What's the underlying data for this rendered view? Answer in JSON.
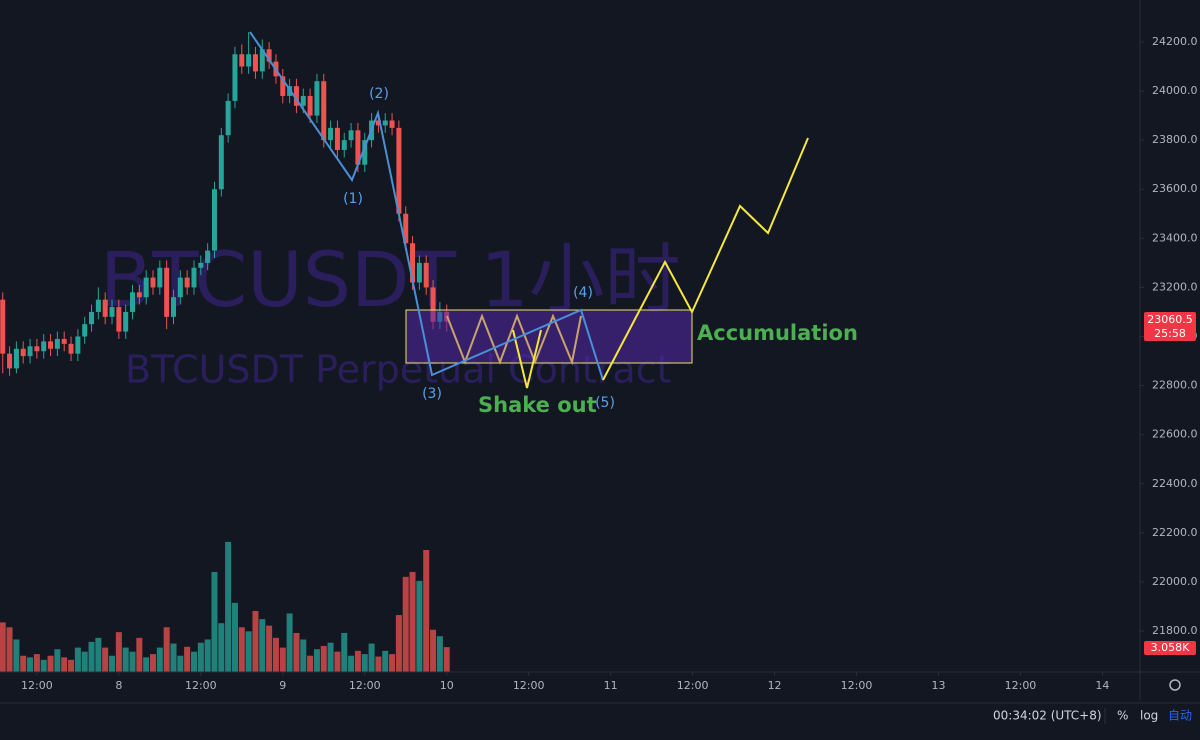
{
  "chart_data": {
    "type": "candlestick",
    "watermark": "BTCUSDT 1小时",
    "watermark_subtitle": "BTCUSDT Perpetual Contract",
    "x": [
      -17,
      -16,
      -15,
      -14,
      -13,
      -12,
      -11,
      -10,
      -9,
      -8,
      -7,
      -6,
      -5,
      -4,
      -3,
      -2,
      -1,
      0,
      1,
      2,
      3,
      4,
      5,
      6,
      7,
      8,
      9,
      10,
      11,
      12,
      13,
      14,
      15,
      16,
      17,
      18,
      19,
      20,
      21,
      22,
      23,
      24,
      25,
      26,
      27,
      28,
      29,
      30,
      31,
      32,
      33,
      34,
      35,
      36,
      37,
      38,
      39,
      40,
      41,
      42,
      43,
      44,
      45,
      46,
      47,
      48
    ],
    "open": [
      23150,
      22930,
      22870,
      22950,
      22920,
      22960,
      22940,
      22980,
      22950,
      22990,
      22970,
      22930,
      23000,
      23050,
      23100,
      23150,
      23080,
      23120,
      23020,
      23100,
      23180,
      23160,
      23240,
      23200,
      23280,
      23080,
      23160,
      23240,
      23200,
      23280,
      23300,
      23350,
      23600,
      23820,
      23960,
      24150,
      24100,
      24150,
      24080,
      24170,
      24120,
      24060,
      23980,
      24020,
      23940,
      23980,
      23900,
      24040,
      23800,
      23850,
      23760,
      23800,
      23840,
      23700,
      23800,
      23880,
      23860,
      23880,
      23850,
      23500,
      23380,
      23220,
      23300,
      23200,
      23060,
      23100
    ],
    "high": [
      23180,
      22960,
      22980,
      22980,
      22990,
      22990,
      23010,
      23010,
      23020,
      23020,
      23000,
      23030,
      23080,
      23130,
      23200,
      23180,
      23150,
      23150,
      23130,
      23210,
      23210,
      23270,
      23270,
      23310,
      23310,
      23190,
      23270,
      23270,
      23310,
      23330,
      23380,
      23630,
      23850,
      23990,
      24180,
      24190,
      24240,
      24180,
      24210,
      24200,
      24150,
      24090,
      24050,
      24050,
      24010,
      24010,
      24070,
      24070,
      23880,
      23880,
      23830,
      23870,
      23870,
      23830,
      23910,
      23910,
      23910,
      23910,
      23880,
      23530,
      23410,
      23330,
      23330,
      23230,
      23140,
      23130
    ],
    "low": [
      22850,
      22840,
      22850,
      22890,
      22890,
      22910,
      22910,
      22920,
      22920,
      22940,
      22900,
      22900,
      22970,
      23020,
      23070,
      23050,
      23050,
      22990,
      22990,
      23070,
      23130,
      23130,
      23170,
      23170,
      23030,
      23050,
      23130,
      23170,
      23170,
      23250,
      23270,
      23320,
      23570,
      23790,
      23930,
      24070,
      24070,
      24050,
      24050,
      24090,
      24030,
      23950,
      23950,
      23910,
      23910,
      23870,
      23870,
      23770,
      23770,
      23730,
      23730,
      23770,
      23670,
      23670,
      23770,
      23830,
      23830,
      23820,
      23470,
      23350,
      23190,
      23190,
      23170,
      23030,
      23030,
      23020
    ],
    "close": [
      22930,
      22870,
      22950,
      22920,
      22960,
      22940,
      22980,
      22950,
      22990,
      22970,
      22930,
      23000,
      23050,
      23100,
      23150,
      23080,
      23120,
      23020,
      23100,
      23180,
      23160,
      23240,
      23200,
      23280,
      23080,
      23160,
      23240,
      23200,
      23280,
      23300,
      23350,
      23600,
      23820,
      23960,
      24150,
      24100,
      24150,
      24080,
      24170,
      24120,
      24060,
      23980,
      24020,
      23940,
      23980,
      23900,
      24040,
      23800,
      23850,
      23760,
      23800,
      23840,
      23700,
      23800,
      23880,
      23860,
      23880,
      23850,
      23500,
      23380,
      23220,
      23300,
      23200,
      23060,
      23100,
      23060.5
    ],
    "volume": [
      6100,
      5500,
      4000,
      2000,
      1800,
      2200,
      1500,
      2000,
      2800,
      1800,
      1500,
      3000,
      2500,
      3700,
      4200,
      3000,
      2000,
      4900,
      3000,
      2500,
      4200,
      1800,
      2200,
      3000,
      5500,
      3500,
      2000,
      3100,
      2500,
      3600,
      4000,
      12300,
      6000,
      16000,
      8500,
      5500,
      5000,
      7500,
      6500,
      5700,
      4200,
      3000,
      7200,
      4800,
      4000,
      2000,
      2800,
      3200,
      3600,
      2500,
      4800,
      2000,
      2600,
      2200,
      3500,
      1900,
      2600,
      2200,
      7000,
      11700,
      12300,
      11200,
      15000,
      5200,
      4400,
      3058
    ],
    "up_color": "#26a69a",
    "down_color": "#ef5350",
    "xlim": [
      -17.4,
      149.5
    ],
    "ylim": [
      21633,
      24371
    ],
    "volume_ylim": [
      0,
      30000
    ],
    "xticks": [
      {
        "value": -12,
        "label": "12:00"
      },
      {
        "value": 0,
        "label": "8"
      },
      {
        "value": 12,
        "label": "12:00"
      },
      {
        "value": 24,
        "label": "9"
      },
      {
        "value": 36,
        "label": "12:00"
      },
      {
        "value": 48,
        "label": "10"
      },
      {
        "value": 60,
        "label": "12:00"
      },
      {
        "value": 72,
        "label": "11"
      },
      {
        "value": 84,
        "label": "12:00"
      },
      {
        "value": 96,
        "label": "12"
      },
      {
        "value": 108,
        "label": "12:00"
      },
      {
        "value": 120,
        "label": "13"
      },
      {
        "value": 132,
        "label": "12:00"
      },
      {
        "value": 144,
        "label": "14"
      }
    ],
    "yticks": [
      {
        "value": 21800,
        "label": "21800.0"
      },
      {
        "value": 22000,
        "label": "22000.0"
      },
      {
        "value": 22200,
        "label": "22200.0"
      },
      {
        "value": 22400,
        "label": "22400.0"
      },
      {
        "value": 22600,
        "label": "22600.0"
      },
      {
        "value": 22800,
        "label": "22800.0"
      },
      {
        "value": 23000,
        "label": "23000.0"
      },
      {
        "value": 23200,
        "label": "23200.0"
      },
      {
        "value": 23400,
        "label": "23400.0"
      },
      {
        "value": 23600,
        "label": "23600.0"
      },
      {
        "value": 23800,
        "label": "23800.0"
      },
      {
        "value": 24000,
        "label": "24000.0"
      },
      {
        "value": 24200,
        "label": "24200.0"
      }
    ],
    "countdown": "25:58",
    "last_volume_label": "3.058K",
    "wave_labels": [
      "(1)",
      "(2)",
      "(3)",
      "(4)",
      "(5)"
    ],
    "annotations": [
      "Shake out",
      "Accumulation"
    ]
  },
  "ui": {
    "clock": "00:34:02 (UTC+8)",
    "toolbar": [
      "%",
      "log",
      "自动"
    ]
  }
}
